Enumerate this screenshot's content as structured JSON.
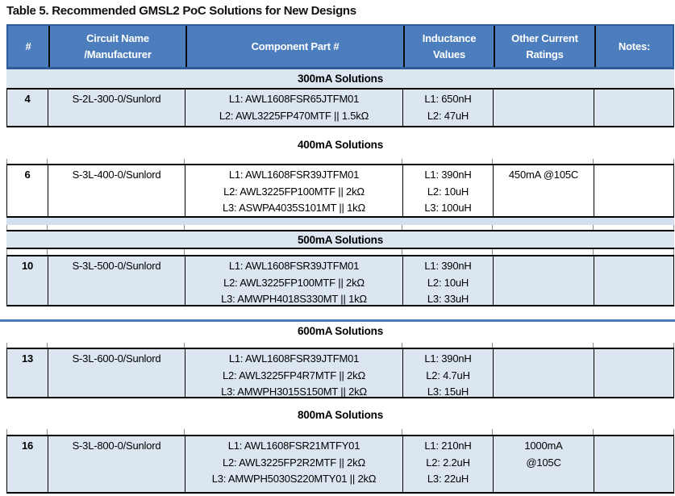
{
  "title": "Table 5. Recommended GMSL2 PoC Solutions for New Designs",
  "colors": {
    "header_bg": "#4C7EBD",
    "header_border": "#2E5A9A",
    "header_text": "#FFFFFF",
    "shaded_row_bg": "#DCE6F1",
    "section_band_bg": "#DCE6F1",
    "thin_strip_bg": "#D5E0EE",
    "accent_bar": "#4A7CBE",
    "grid_border": "#000000"
  },
  "table": {
    "headers": [
      "#",
      "Circuit Name\n/Manufacturer",
      "Component Part #",
      "Inductance\nValues",
      "Other Current\nRatings",
      "Notes:"
    ]
  },
  "sections": [
    {
      "label": "300mA Solutions",
      "row": {
        "num": "4",
        "circuit": "S-2L-300-0/Sunlord",
        "components": "L1: AWL1608FSR65JTFM01\nL2: AWL3225FP470MTF || 1.5kΩ",
        "inductance": "L1: 650nH\nL2: 47uH",
        "other": "",
        "notes": ""
      }
    },
    {
      "label": "400mA Solutions",
      "row": {
        "num": "6",
        "circuit": "S-3L-400-0/Sunlord",
        "components": "L1: AWL1608FSR39JTFM01\nL2: AWL3225FP100MTF || 2kΩ\nL3: ASWPA4035S101MT || 1kΩ",
        "inductance": "L1: 390nH\nL2: 10uH\nL3: 100uH",
        "other": "450mA @105C",
        "notes": ""
      }
    },
    {
      "label": "500mA Solutions",
      "row": {
        "num": "10",
        "circuit": "S-3L-500-0/Sunlord",
        "components": "L1: AWL1608FSR39JTFM01\nL2: AWL3225FP100MTF || 2kΩ\nL3: AMWPH4018S330MT || 1kΩ",
        "inductance": "L1: 390nH\nL2: 10uH\nL3: 33uH",
        "other": "",
        "notes": ""
      }
    },
    {
      "label": "600mA Solutions",
      "row": {
        "num": "13",
        "circuit": "S-3L-600-0/Sunlord",
        "components": "L1: AWL1608FSR39JTFM01\nL2: AWL3225FP4R7MTF || 2kΩ\nL3: AMWPH3015S150MT || 2kΩ",
        "inductance": "L1: 390nH\nL2: 4.7uH\nL3: 15uH",
        "other": "",
        "notes": ""
      }
    },
    {
      "label": "800mA Solutions",
      "row": {
        "num": "16",
        "circuit": "S-3L-800-0/Sunlord",
        "components": "L1: AWL1608FSR21MTFY01\nL2: AWL3225FP2R2MTF || 2kΩ\nL3: AMWPH5030S220MTY01 || 2kΩ",
        "inductance": "L1: 210nH\nL2: 2.2uH\nL3: 22uH",
        "other": "1000mA\n@105C",
        "notes": ""
      }
    }
  ]
}
